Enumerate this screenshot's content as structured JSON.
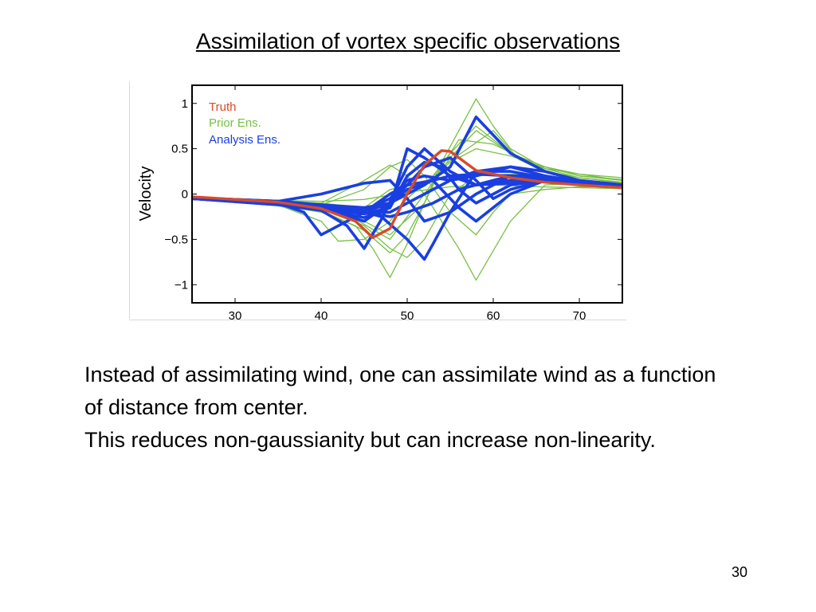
{
  "slide": {
    "title": "Assimilation of vortex specific observations",
    "body_lines": [
      "Instead of assimilating wind, one can assimilate wind as a function of distance from center.",
      "This reduces non-gaussianity but can increase non-linearity."
    ],
    "page_number": "30"
  },
  "chart_data": {
    "type": "line",
    "title": "",
    "xlabel": "",
    "ylabel": "Velocity",
    "xlim": [
      25,
      75
    ],
    "ylim": [
      -1.2,
      1.2
    ],
    "xticks": [
      30,
      40,
      50,
      60,
      70
    ],
    "yticks": [
      -1,
      -0.5,
      0,
      0.5,
      1
    ],
    "ytick_labels": [
      "−1",
      "−0.5",
      "0",
      "0.5",
      "1"
    ],
    "grid": false,
    "legend_position": "top-left",
    "colors": {
      "truth": "#d84a2b",
      "prior": "#77c043",
      "analysis": "#1a3fe0"
    },
    "series": [
      {
        "name": "Truth",
        "group": "truth",
        "x": [
          25,
          30,
          35,
          40,
          44,
          46,
          48,
          50,
          52,
          54,
          55,
          58,
          62,
          66,
          70,
          75
        ],
        "y": [
          -0.03,
          -0.06,
          -0.09,
          -0.16,
          -0.3,
          -0.48,
          -0.38,
          0.0,
          0.32,
          0.48,
          0.47,
          0.26,
          0.18,
          0.13,
          0.1,
          0.07
        ]
      },
      {
        "name": "Prior Ens.",
        "group": "prior",
        "x": [
          25,
          35,
          40,
          44,
          46,
          48,
          50,
          52,
          54,
          56,
          58,
          60,
          62,
          66,
          70,
          75
        ],
        "y": [
          -0.05,
          -0.12,
          -0.2,
          -0.35,
          -0.6,
          -0.92,
          -0.55,
          -0.1,
          0.35,
          0.7,
          1.05,
          0.75,
          0.5,
          0.28,
          0.22,
          0.18
        ]
      },
      {
        "group": "prior",
        "x": [
          25,
          35,
          40,
          45,
          48,
          50,
          52,
          54,
          56,
          60,
          65,
          70,
          75
        ],
        "y": [
          -0.05,
          -0.1,
          -0.18,
          -0.4,
          -0.65,
          -0.45,
          -0.1,
          0.3,
          0.6,
          0.55,
          0.32,
          0.22,
          0.15
        ]
      },
      {
        "group": "prior",
        "x": [
          25,
          35,
          40,
          42,
          45,
          48,
          50,
          53,
          55,
          58,
          62,
          66,
          70,
          75
        ],
        "y": [
          -0.04,
          -0.12,
          -0.3,
          -0.52,
          -0.5,
          -0.3,
          -0.05,
          0.2,
          0.45,
          0.75,
          0.45,
          0.3,
          0.2,
          0.15
        ]
      },
      {
        "group": "prior",
        "x": [
          25,
          35,
          40,
          45,
          48,
          50,
          52,
          54,
          56,
          58,
          62,
          66,
          70,
          75
        ],
        "y": [
          -0.03,
          -0.08,
          -0.1,
          0.15,
          0.32,
          0.2,
          0.0,
          -0.3,
          -0.6,
          -0.95,
          -0.3,
          0.1,
          0.12,
          0.1
        ]
      },
      {
        "group": "prior",
        "x": [
          25,
          35,
          40,
          45,
          48,
          50,
          52,
          55,
          58,
          60,
          62,
          66,
          70,
          75
        ],
        "y": [
          -0.05,
          -0.1,
          -0.12,
          0.05,
          0.3,
          0.38,
          0.2,
          -0.2,
          -0.45,
          -0.2,
          0.0,
          0.05,
          0.08,
          0.08
        ]
      },
      {
        "group": "prior",
        "x": [
          25,
          35,
          40,
          45,
          48,
          52,
          54,
          57,
          60,
          63,
          66,
          70,
          75
        ],
        "y": [
          -0.05,
          -0.1,
          -0.15,
          -0.3,
          -0.45,
          -0.1,
          0.3,
          0.5,
          0.7,
          0.38,
          0.25,
          0.18,
          0.13
        ]
      },
      {
        "group": "prior",
        "x": [
          25,
          35,
          40,
          44,
          48,
          52,
          55,
          58,
          62,
          66,
          70,
          75
        ],
        "y": [
          -0.04,
          -0.1,
          -0.15,
          -0.28,
          -0.5,
          0.0,
          0.4,
          0.7,
          0.45,
          0.3,
          0.2,
          0.16
        ]
      },
      {
        "group": "prior",
        "x": [
          25,
          35,
          40,
          45,
          48,
          52,
          55,
          58,
          62,
          66,
          70,
          75
        ],
        "y": [
          -0.03,
          -0.07,
          -0.1,
          -0.15,
          0.05,
          0.12,
          0.35,
          0.5,
          0.42,
          0.28,
          0.18,
          0.12
        ]
      },
      {
        "group": "prior",
        "x": [
          25,
          35,
          40,
          45,
          48,
          50,
          52,
          55,
          58,
          62,
          66,
          70,
          75
        ],
        "y": [
          -0.05,
          -0.1,
          -0.15,
          -0.35,
          -0.6,
          -0.7,
          -0.5,
          0.0,
          0.2,
          0.22,
          0.2,
          0.15,
          0.12
        ]
      },
      {
        "group": "prior",
        "x": [
          25,
          35,
          40,
          45,
          50,
          55,
          60,
          65,
          70,
          75
        ],
        "y": [
          -0.04,
          -0.07,
          -0.08,
          -0.06,
          0.02,
          0.08,
          0.1,
          0.08,
          0.07,
          0.06
        ]
      },
      {
        "name": "Analysis Ens.",
        "group": "analysis",
        "x": [
          25,
          35,
          38,
          40,
          42,
          45,
          48,
          50,
          53,
          55,
          58,
          62,
          66,
          70,
          75
        ],
        "y": [
          -0.05,
          -0.1,
          -0.2,
          -0.45,
          -0.35,
          -0.2,
          0.0,
          0.1,
          0.15,
          0.2,
          0.22,
          0.2,
          0.15,
          0.12,
          0.08
        ]
      },
      {
        "group": "analysis",
        "x": [
          25,
          35,
          40,
          43,
          45,
          47,
          50,
          52,
          55,
          58,
          62,
          66,
          70,
          75
        ],
        "y": [
          -0.05,
          -0.12,
          -0.18,
          -0.35,
          -0.6,
          -0.28,
          0.3,
          0.5,
          0.25,
          0.1,
          0.12,
          0.15,
          0.12,
          0.08
        ]
      },
      {
        "group": "analysis",
        "x": [
          25,
          35,
          40,
          45,
          47,
          50,
          52,
          53,
          55,
          58,
          62,
          66,
          70,
          75
        ],
        "y": [
          -0.04,
          -0.1,
          -0.12,
          -0.2,
          -0.25,
          -0.5,
          -0.72,
          -0.55,
          -0.2,
          0.25,
          0.25,
          0.18,
          0.12,
          0.08
        ]
      },
      {
        "group": "analysis",
        "x": [
          25,
          35,
          40,
          45,
          48,
          50,
          52,
          55,
          58,
          62,
          66,
          70,
          75
        ],
        "y": [
          -0.05,
          -0.1,
          -0.15,
          -0.2,
          -0.1,
          0.0,
          0.1,
          0.3,
          0.85,
          0.45,
          0.25,
          0.15,
          0.1
        ]
      },
      {
        "group": "analysis",
        "x": [
          25,
          35,
          40,
          45,
          48,
          50,
          52,
          55,
          58,
          62,
          66,
          70,
          75
        ],
        "y": [
          -0.04,
          -0.08,
          0.0,
          0.12,
          0.15,
          -0.05,
          -0.3,
          -0.2,
          0.0,
          0.2,
          0.2,
          0.14,
          0.1
        ]
      },
      {
        "group": "analysis",
        "x": [
          25,
          35,
          40,
          45,
          48,
          50,
          52,
          55,
          58,
          60,
          62,
          66,
          70,
          75
        ],
        "y": [
          -0.05,
          -0.1,
          -0.15,
          -0.3,
          -0.1,
          0.1,
          0.3,
          0.4,
          0.15,
          -0.05,
          0.05,
          0.15,
          0.12,
          0.08
        ]
      },
      {
        "group": "analysis",
        "x": [
          25,
          35,
          40,
          45,
          48,
          50,
          53,
          56,
          58,
          62,
          66,
          70,
          75
        ],
        "y": [
          -0.04,
          -0.08,
          -0.12,
          -0.15,
          -0.1,
          0.05,
          0.15,
          -0.15,
          -0.3,
          0.0,
          0.15,
          0.12,
          0.08
        ]
      },
      {
        "group": "analysis",
        "x": [
          25,
          35,
          40,
          45,
          48,
          50,
          52,
          55,
          58,
          62,
          66,
          70,
          75
        ],
        "y": [
          -0.05,
          -0.1,
          -0.16,
          -0.22,
          -0.15,
          0.5,
          0.4,
          0.2,
          0.1,
          0.15,
          0.15,
          0.12,
          0.09
        ]
      },
      {
        "group": "analysis",
        "x": [
          25,
          35,
          40,
          45,
          48,
          50,
          52,
          55,
          58,
          62,
          66,
          70,
          75
        ],
        "y": [
          -0.05,
          -0.1,
          -0.14,
          -0.2,
          -0.2,
          -0.1,
          0.0,
          0.15,
          0.25,
          0.3,
          0.2,
          0.14,
          0.1
        ]
      },
      {
        "group": "analysis",
        "x": [
          25,
          35,
          40,
          45,
          48,
          50,
          52,
          55,
          58,
          62,
          66,
          70,
          75
        ],
        "y": [
          -0.04,
          -0.09,
          -0.13,
          -0.18,
          -0.05,
          0.15,
          0.2,
          0.15,
          0.2,
          0.3,
          0.25,
          0.15,
          0.1
        ]
      },
      {
        "group": "analysis",
        "x": [
          25,
          35,
          40,
          45,
          48,
          50,
          53,
          56,
          60,
          62,
          65,
          70,
          75
        ],
        "y": [
          -0.05,
          -0.1,
          -0.14,
          -0.2,
          -0.25,
          -0.2,
          -0.1,
          0.05,
          0.15,
          0.2,
          0.18,
          0.13,
          0.09
        ]
      },
      {
        "group": "analysis",
        "x": [
          25,
          35,
          40,
          45,
          48,
          50,
          52,
          54,
          56,
          58,
          62,
          66,
          70,
          75
        ],
        "y": [
          -0.05,
          -0.1,
          -0.16,
          -0.26,
          -0.15,
          0.2,
          0.35,
          0.3,
          0.05,
          -0.1,
          0.1,
          0.15,
          0.12,
          0.08
        ]
      }
    ]
  }
}
